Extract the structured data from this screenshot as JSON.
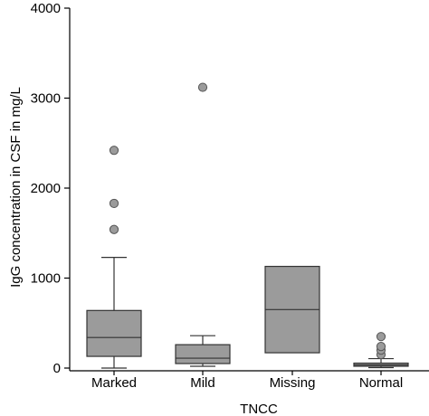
{
  "chart_data": {
    "type": "box",
    "xlabel": "TNCC",
    "ylabel": "IgG concentration in CSF in mg/L",
    "ylim": [
      0,
      4000
    ],
    "yticks": [
      0,
      1000,
      2000,
      3000,
      4000
    ],
    "categories": [
      "Marked",
      "Mild",
      "Missing",
      "Normal"
    ],
    "boxes": [
      {
        "category": "Marked",
        "whisker_low": 0,
        "q1": 130,
        "median": 340,
        "q3": 640,
        "whisker_high": 1230,
        "outliers": [
          1540,
          1830,
          2420
        ]
      },
      {
        "category": "Mild",
        "whisker_low": 20,
        "q1": 50,
        "median": 110,
        "q3": 260,
        "whisker_high": 360,
        "outliers": [
          3120
        ]
      },
      {
        "category": "Missing",
        "whisker_low": null,
        "q1": 170,
        "median": 650,
        "q3": 1130,
        "whisker_high": null,
        "outliers": []
      },
      {
        "category": "Normal",
        "whisker_low": 5,
        "q1": 20,
        "median": 35,
        "q3": 55,
        "whisker_high": 105,
        "outliers": [
          150,
          200,
          240,
          350
        ]
      }
    ],
    "grid": false,
    "box_color": "#9b9b9b"
  }
}
